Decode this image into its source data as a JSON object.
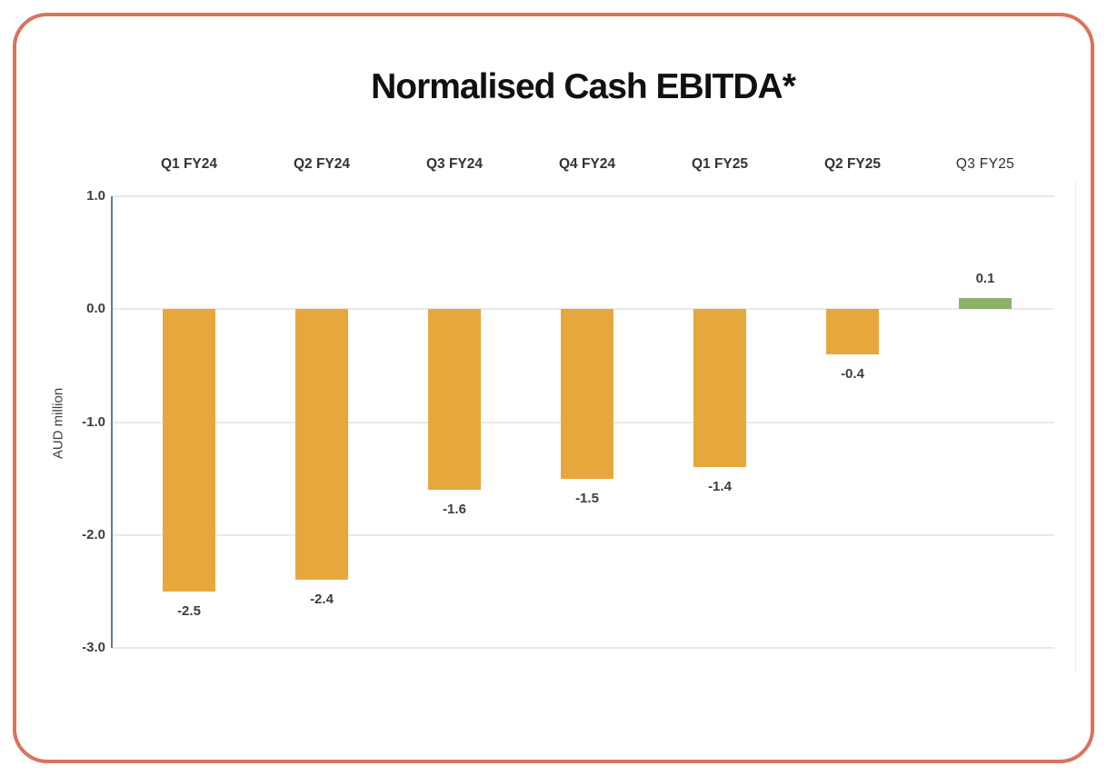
{
  "card": {
    "border_color": "#d9735c",
    "background": "#ffffff"
  },
  "title": "Normalised Cash EBITDA*",
  "chart_data": {
    "type": "bar",
    "title": "Normalised Cash EBITDA*",
    "categories": [
      "Q1 FY24",
      "Q2 FY24",
      "Q3 FY24",
      "Q4 FY24",
      "Q1 FY25",
      "Q2 FY25",
      "Q3 FY25"
    ],
    "values": [
      -2.5,
      -2.4,
      -1.6,
      -1.5,
      -1.4,
      -0.4,
      0.1
    ],
    "value_labels": [
      "-2.5",
      "-2.4",
      "-1.6",
      "-1.5",
      "-1.4",
      "-0.4",
      "0.1"
    ],
    "xlabel": "",
    "ylabel": "AUD million",
    "ylim": [
      -3.0,
      1.0
    ],
    "yticks": [
      1.0,
      0.0,
      -1.0,
      -2.0,
      -3.0
    ],
    "ytick_labels": [
      "1.0",
      "0.0",
      "-1.0",
      "-2.0",
      "-3.0"
    ],
    "grid": true,
    "legend_position": "none",
    "colors": {
      "negative_bar": "#e6a83d",
      "positive_bar": "#8fb06b",
      "axis_line": "#5d7d96",
      "gridline": "#e9e9e9",
      "label_text": "#3d3d3d"
    }
  }
}
